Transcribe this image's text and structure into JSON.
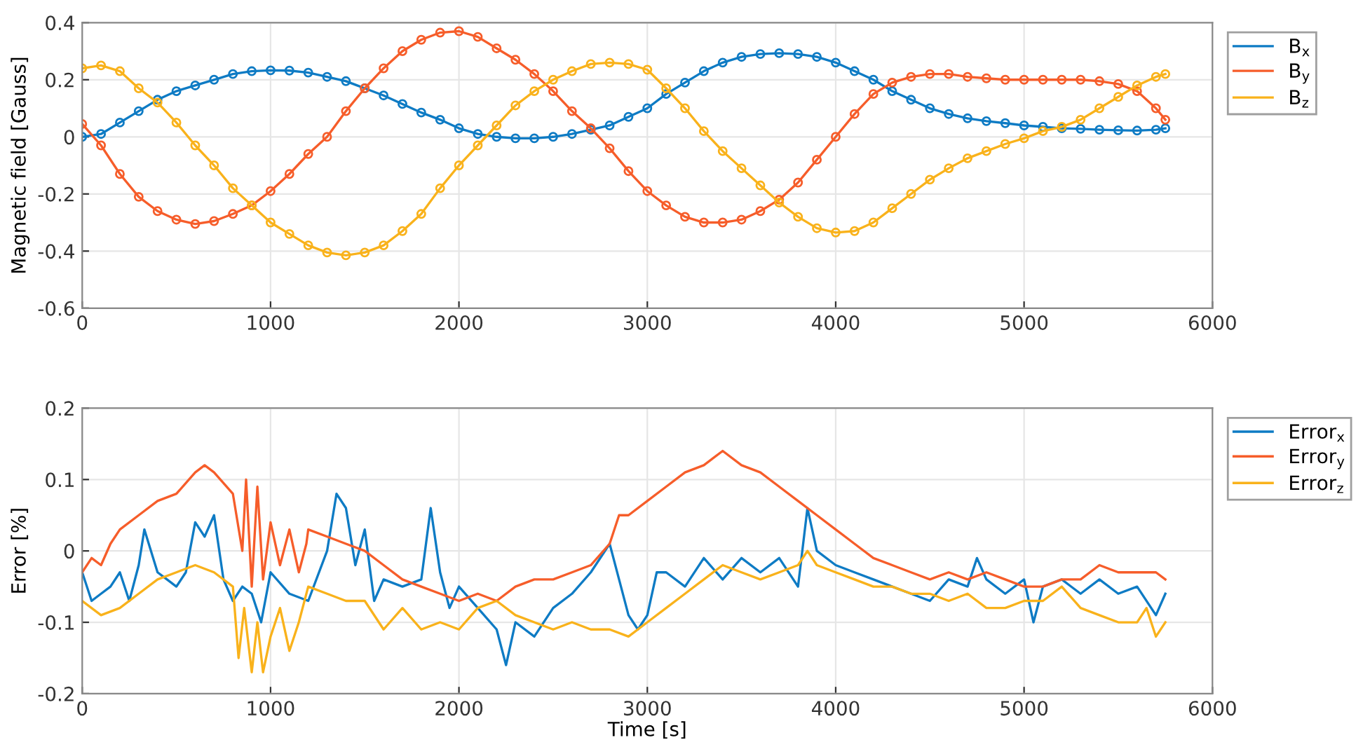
{
  "chart_data": [
    {
      "type": "line",
      "ylabel": "Magnetic field [Gauss]",
      "xlim": [
        0,
        6000
      ],
      "xticks": [
        0,
        1000,
        2000,
        3000,
        4000,
        5000,
        6000
      ],
      "ylim": [
        -0.6,
        0.4
      ],
      "yticks": [
        -0.6,
        -0.4,
        -0.2,
        0,
        0.2,
        0.4
      ],
      "grid": true,
      "legend": "top right",
      "marker": "circle",
      "line_style": "solid",
      "x": [
        0,
        100,
        200,
        300,
        400,
        500,
        600,
        700,
        800,
        900,
        1000,
        1100,
        1200,
        1300,
        1400,
        1500,
        1600,
        1700,
        1800,
        1900,
        2000,
        2100,
        2200,
        2300,
        2400,
        2500,
        2600,
        2700,
        2800,
        2900,
        3000,
        3100,
        3200,
        3300,
        3400,
        3500,
        3600,
        3700,
        3800,
        3900,
        4000,
        4100,
        4200,
        4300,
        4400,
        4500,
        4600,
        4700,
        4800,
        4900,
        5000,
        5100,
        5200,
        5300,
        5400,
        5500,
        5600,
        5700,
        5750
      ],
      "series": [
        {
          "name": "B$_{x}$",
          "color": "#0e7bc4",
          "values": [
            0,
            0.01,
            0.05,
            0.09,
            0.13,
            0.16,
            0.18,
            0.2,
            0.22,
            0.23,
            0.233,
            0.232,
            0.225,
            0.21,
            0.195,
            0.17,
            0.145,
            0.115,
            0.085,
            0.06,
            0.03,
            0.01,
            0,
            -0.005,
            -0.005,
            0,
            0.01,
            0.025,
            0.04,
            0.07,
            0.1,
            0.15,
            0.19,
            0.23,
            0.26,
            0.28,
            0.29,
            0.293,
            0.29,
            0.28,
            0.26,
            0.23,
            0.2,
            0.16,
            0.13,
            0.1,
            0.08,
            0.065,
            0.055,
            0.048,
            0.04,
            0.035,
            0.03,
            0.028,
            0.025,
            0.023,
            0.022,
            0.025,
            0.03
          ]
        },
        {
          "name": "B$_{y}$",
          "color": "#f65d2a",
          "values": [
            0.045,
            -0.03,
            -0.13,
            -0.21,
            -0.26,
            -0.29,
            -0.305,
            -0.295,
            -0.27,
            -0.24,
            -0.19,
            -0.13,
            -0.06,
            0,
            0.09,
            0.17,
            0.24,
            0.3,
            0.34,
            0.365,
            0.37,
            0.35,
            0.31,
            0.27,
            0.22,
            0.16,
            0.09,
            0.03,
            -0.04,
            -0.12,
            -0.19,
            -0.24,
            -0.28,
            -0.3,
            -0.3,
            -0.29,
            -0.26,
            -0.22,
            -0.16,
            -0.08,
            0,
            0.08,
            0.15,
            0.19,
            0.21,
            0.22,
            0.22,
            0.21,
            0.205,
            0.2,
            0.2,
            0.2,
            0.2,
            0.2,
            0.195,
            0.185,
            0.16,
            0.1,
            0.06
          ]
        },
        {
          "name": "B$_{z}$",
          "color": "#f9b21b",
          "values": [
            0.24,
            0.25,
            0.23,
            0.17,
            0.12,
            0.05,
            -0.03,
            -0.1,
            -0.18,
            -0.24,
            -0.3,
            -0.34,
            -0.38,
            -0.405,
            -0.415,
            -0.405,
            -0.38,
            -0.33,
            -0.27,
            -0.18,
            -0.1,
            -0.03,
            0.04,
            0.11,
            0.16,
            0.2,
            0.23,
            0.255,
            0.26,
            0.255,
            0.235,
            0.17,
            0.1,
            0.02,
            -0.05,
            -0.11,
            -0.17,
            -0.23,
            -0.28,
            -0.32,
            -0.335,
            -0.33,
            -0.3,
            -0.25,
            -0.2,
            -0.15,
            -0.11,
            -0.075,
            -0.05,
            -0.025,
            -0.005,
            0.02,
            0.035,
            0.06,
            0.1,
            0.14,
            0.18,
            0.21,
            0.22
          ]
        }
      ]
    },
    {
      "type": "line",
      "xlabel": "Time [s]",
      "ylabel": "Error [%]",
      "xlim": [
        0,
        6000
      ],
      "xticks": [
        0,
        1000,
        2000,
        3000,
        4000,
        5000,
        6000
      ],
      "ylim": [
        -0.2,
        0.2
      ],
      "yticks": [
        -0.2,
        -0.1,
        0,
        0.1,
        0.2
      ],
      "grid": true,
      "legend": "top right",
      "line_style": "solid",
      "series": [
        {
          "name": "Error$_{x}$",
          "color": "#0e7bc4",
          "x": [
            0,
            50,
            100,
            150,
            200,
            250,
            300,
            330,
            400,
            450,
            500,
            550,
            600,
            650,
            700,
            750,
            800,
            850,
            900,
            950,
            1000,
            1100,
            1200,
            1300,
            1350,
            1400,
            1450,
            1500,
            1550,
            1600,
            1700,
            1800,
            1850,
            1900,
            1950,
            2000,
            2100,
            2200,
            2250,
            2300,
            2400,
            2500,
            2600,
            2700,
            2800,
            2850,
            2900,
            2950,
            3000,
            3050,
            3100,
            3200,
            3300,
            3400,
            3500,
            3600,
            3700,
            3800,
            3850,
            3900,
            4000,
            4100,
            4200,
            4300,
            4400,
            4500,
            4600,
            4700,
            4750,
            4800,
            4900,
            5000,
            5050,
            5100,
            5200,
            5300,
            5400,
            5500,
            5600,
            5700,
            5750
          ],
          "values": [
            -0.03,
            -0.07,
            -0.06,
            -0.05,
            -0.03,
            -0.07,
            -0.02,
            0.03,
            -0.03,
            -0.04,
            -0.05,
            -0.03,
            0.04,
            0.02,
            0.05,
            -0.04,
            -0.07,
            -0.05,
            -0.06,
            -0.1,
            -0.03,
            -0.06,
            -0.07,
            0,
            0.08,
            0.06,
            -0.02,
            0.03,
            -0.07,
            -0.04,
            -0.05,
            -0.04,
            0.06,
            -0.03,
            -0.08,
            -0.05,
            -0.08,
            -0.11,
            -0.16,
            -0.1,
            -0.12,
            -0.08,
            -0.06,
            -0.03,
            0.01,
            -0.04,
            -0.09,
            -0.11,
            -0.09,
            -0.03,
            -0.03,
            -0.05,
            -0.01,
            -0.04,
            -0.01,
            -0.03,
            -0.01,
            -0.05,
            0.06,
            0,
            -0.02,
            -0.03,
            -0.04,
            -0.05,
            -0.06,
            -0.07,
            -0.04,
            -0.05,
            -0.01,
            -0.04,
            -0.06,
            -0.04,
            -0.1,
            -0.05,
            -0.04,
            -0.06,
            -0.04,
            -0.06,
            -0.05,
            -0.09,
            -0.06
          ]
        },
        {
          "name": "Error$_{y}$",
          "color": "#f65d2a",
          "x": [
            0,
            50,
            100,
            150,
            200,
            300,
            400,
            500,
            600,
            650,
            700,
            800,
            850,
            870,
            900,
            930,
            960,
            1000,
            1050,
            1100,
            1150,
            1190,
            1200,
            1300,
            1400,
            1500,
            1600,
            1700,
            1800,
            1900,
            2000,
            2100,
            2200,
            2300,
            2400,
            2500,
            2600,
            2700,
            2800,
            2850,
            2900,
            3000,
            3100,
            3200,
            3300,
            3400,
            3500,
            3600,
            3700,
            3800,
            3900,
            4000,
            4100,
            4200,
            4300,
            4400,
            4500,
            4600,
            4700,
            4800,
            4900,
            5000,
            5100,
            5200,
            5300,
            5400,
            5500,
            5600,
            5700,
            5750
          ],
          "values": [
            -0.03,
            -0.01,
            -0.02,
            0.01,
            0.03,
            0.05,
            0.07,
            0.08,
            0.11,
            0.12,
            0.11,
            0.08,
            0,
            0.1,
            -0.05,
            0.09,
            -0.04,
            0.04,
            -0.02,
            0.03,
            -0.03,
            0.01,
            0.03,
            0.02,
            0.01,
            0,
            -0.02,
            -0.04,
            -0.05,
            -0.06,
            -0.07,
            -0.06,
            -0.07,
            -0.05,
            -0.04,
            -0.04,
            -0.03,
            -0.02,
            0.01,
            0.05,
            0.05,
            0.07,
            0.09,
            0.11,
            0.12,
            0.14,
            0.12,
            0.11,
            0.09,
            0.07,
            0.05,
            0.03,
            0.01,
            -0.01,
            -0.02,
            -0.03,
            -0.04,
            -0.03,
            -0.04,
            -0.03,
            -0.04,
            -0.05,
            -0.05,
            -0.04,
            -0.04,
            -0.02,
            -0.03,
            -0.03,
            -0.03,
            -0.04
          ]
        },
        {
          "name": "Error$_{z}$",
          "color": "#f9b21b",
          "x": [
            0,
            100,
            200,
            300,
            400,
            500,
            600,
            700,
            800,
            830,
            860,
            900,
            930,
            960,
            1000,
            1050,
            1100,
            1150,
            1200,
            1300,
            1400,
            1500,
            1600,
            1700,
            1800,
            1900,
            2000,
            2100,
            2200,
            2300,
            2400,
            2500,
            2600,
            2700,
            2800,
            2900,
            3000,
            3100,
            3200,
            3300,
            3400,
            3500,
            3600,
            3700,
            3800,
            3850,
            3900,
            4000,
            4100,
            4200,
            4300,
            4400,
            4500,
            4600,
            4700,
            4800,
            4900,
            5000,
            5100,
            5200,
            5300,
            5400,
            5500,
            5600,
            5650,
            5700,
            5750
          ],
          "values": [
            -0.07,
            -0.09,
            -0.08,
            -0.06,
            -0.04,
            -0.03,
            -0.02,
            -0.03,
            -0.05,
            -0.15,
            -0.08,
            -0.17,
            -0.1,
            -0.17,
            -0.12,
            -0.08,
            -0.14,
            -0.1,
            -0.05,
            -0.06,
            -0.07,
            -0.07,
            -0.11,
            -0.08,
            -0.11,
            -0.1,
            -0.11,
            -0.08,
            -0.07,
            -0.09,
            -0.1,
            -0.11,
            -0.1,
            -0.11,
            -0.11,
            -0.12,
            -0.1,
            -0.08,
            -0.06,
            -0.04,
            -0.02,
            -0.03,
            -0.04,
            -0.03,
            -0.02,
            0,
            -0.02,
            -0.03,
            -0.04,
            -0.05,
            -0.05,
            -0.06,
            -0.06,
            -0.07,
            -0.06,
            -0.08,
            -0.08,
            -0.07,
            -0.07,
            -0.05,
            -0.08,
            -0.09,
            -0.1,
            -0.1,
            -0.08,
            -0.12,
            -0.1
          ]
        }
      ]
    }
  ]
}
